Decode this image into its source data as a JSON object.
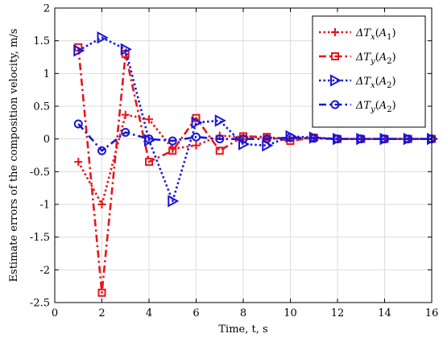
{
  "chart_data": {
    "type": "line",
    "title": "",
    "xlabel": "Time,  t, s",
    "ylabel": "Estimate errors of the composition velocity, m/s",
    "xlim": [
      0,
      16
    ],
    "ylim": [
      -2.5,
      2
    ],
    "xticks": [
      0,
      2,
      4,
      6,
      8,
      10,
      12,
      14,
      16
    ],
    "yticks": [
      -2.5,
      -2,
      -1.5,
      -1,
      -0.5,
      0,
      0.5,
      1,
      1.5,
      2
    ],
    "xtick_labels": [
      "0",
      "2",
      "4",
      "6",
      "8",
      "10",
      "12",
      "14",
      "16"
    ],
    "ytick_labels": [
      "-2.5",
      "-2",
      "-1.5",
      "-1",
      "-0.5",
      "0",
      "0.5",
      "1",
      "1.5",
      "2"
    ],
    "grid": true,
    "legend_position": "top-right",
    "series": [
      {
        "name": "ΔT_x(A_1)",
        "label_main": "ΔT",
        "label_sub": "x",
        "label_arg": "A",
        "label_argsub": "1",
        "color": "#e8151b",
        "line_style": "dotted",
        "marker": "plus",
        "x": [
          1,
          2,
          3,
          4,
          5,
          6,
          7,
          8,
          9,
          10,
          11,
          12,
          13,
          14,
          15,
          16
        ],
        "y": [
          -0.35,
          -1.0,
          0.37,
          0.3,
          -0.15,
          -0.1,
          0.05,
          0.03,
          0.02,
          0.01,
          0.01,
          0.0,
          0.0,
          0.0,
          0.0,
          0.0
        ]
      },
      {
        "name": "ΔT_y(A_2)",
        "label_main": "ΔT",
        "label_sub": "y",
        "label_arg": "A",
        "label_argsub": "2",
        "color": "#e8151b",
        "line_style": "dashdot",
        "marker": "square",
        "x": [
          1,
          2,
          3,
          4,
          5,
          6,
          7,
          8,
          9,
          10,
          11,
          12,
          13,
          14,
          15,
          16
        ],
        "y": [
          1.4,
          -2.35,
          1.3,
          -0.35,
          -0.18,
          0.32,
          -0.18,
          0.04,
          0.03,
          -0.03,
          0.02,
          0.0,
          0.0,
          0.0,
          0.0,
          0.0
        ]
      },
      {
        "name": "ΔT_x(A_2)",
        "label_main": "ΔT",
        "label_sub": "x",
        "label_arg": "A",
        "label_argsub": "2",
        "color": "#1a17d6",
        "line_style": "dotted",
        "marker": "triangle-right",
        "x": [
          1,
          2,
          3,
          4,
          5,
          6,
          7,
          8,
          9,
          10,
          11,
          12,
          13,
          14,
          15,
          16
        ],
        "y": [
          1.35,
          1.55,
          1.37,
          -0.02,
          -0.95,
          0.25,
          0.28,
          -0.08,
          -0.1,
          0.04,
          0.02,
          0.0,
          0.0,
          0.0,
          0.0,
          0.0
        ]
      },
      {
        "name": "ΔT_y(A_2)",
        "label_main": "ΔT",
        "label_sub": "y",
        "label_arg": "A",
        "label_argsub": "2",
        "color": "#1a17d6",
        "line_style": "dashdot",
        "marker": "circle",
        "x": [
          1,
          2,
          3,
          4,
          5,
          6,
          7,
          8,
          9,
          10,
          11,
          12,
          13,
          14,
          15,
          16
        ],
        "y": [
          0.23,
          -0.18,
          0.1,
          0.0,
          -0.03,
          0.03,
          0.0,
          0.0,
          0.0,
          0.02,
          0.01,
          0.0,
          0.0,
          0.0,
          0.0,
          0.0
        ]
      }
    ]
  }
}
